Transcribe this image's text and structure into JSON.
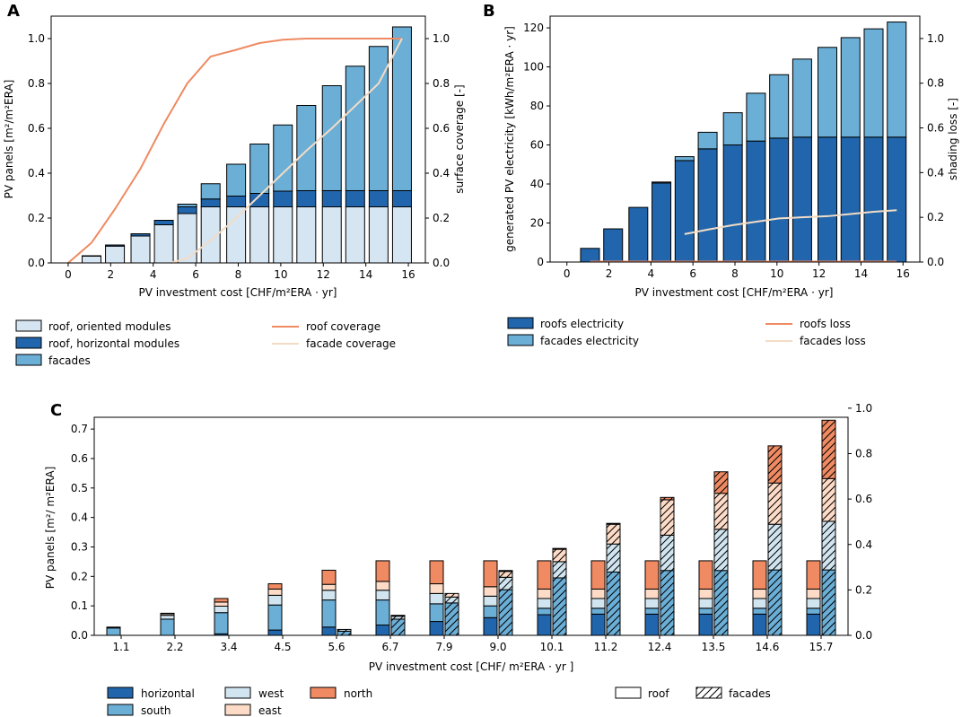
{
  "panels": {
    "a": {
      "label": "A"
    },
    "b": {
      "label": "B"
    },
    "c": {
      "label": "C"
    }
  },
  "colors": {
    "roof_oriented": "#d6e5f2",
    "roof_horizontal": "#2166ac",
    "facades": "#6baed6",
    "roof_coverage": "#ef8a62",
    "facade_coverage": "#f2dcc6",
    "west": "#d1e5f0",
    "east": "#fddbc7",
    "north": "#ef8a62"
  },
  "chart_data": [
    {
      "id": "A",
      "type": "bar",
      "stacked": true,
      "x": [
        1.1,
        2.2,
        3.4,
        4.5,
        5.6,
        6.7,
        7.9,
        9.0,
        10.1,
        11.2,
        12.4,
        13.5,
        14.6,
        15.7
      ],
      "series": [
        {
          "name": "roof, oriented modules",
          "values": [
            0.03,
            0.075,
            0.12,
            0.17,
            0.22,
            0.25,
            0.25,
            0.25,
            0.25,
            0.25,
            0.25,
            0.25,
            0.25,
            0.25
          ]
        },
        {
          "name": "roof, horizontal modules",
          "values": [
            0.002,
            0.005,
            0.01,
            0.02,
            0.03,
            0.035,
            0.048,
            0.06,
            0.07,
            0.072,
            0.072,
            0.072,
            0.072,
            0.072
          ]
        },
        {
          "name": "facades",
          "values": [
            0,
            0,
            0,
            0,
            0.012,
            0.068,
            0.142,
            0.22,
            0.295,
            0.38,
            0.468,
            0.555,
            0.643,
            0.73
          ]
        }
      ],
      "lines_right_axis": [
        {
          "name": "roof coverage",
          "x": [
            0,
            1.1,
            2.2,
            3.4,
            4.5,
            5.6,
            6.7,
            7.9,
            9.0,
            10.1,
            11.2,
            12.4,
            13.5,
            14.6,
            15.7
          ],
          "values": [
            0.0,
            0.09,
            0.24,
            0.42,
            0.62,
            0.8,
            0.92,
            0.95,
            0.98,
            0.995,
            1.0,
            1.0,
            1.0,
            1.0,
            1.0
          ]
        },
        {
          "name": "facade coverage",
          "x": [
            4.8,
            5.6,
            6.7,
            7.9,
            9.0,
            10.1,
            11.2,
            12.4,
            13.5,
            14.6,
            15.7
          ],
          "values": [
            0.0,
            0.02,
            0.1,
            0.2,
            0.3,
            0.4,
            0.5,
            0.6,
            0.7,
            0.8,
            1.0
          ]
        }
      ],
      "xlabel": "PV investment cost [CHF/m²ERA · yr]",
      "ylabel": "PV panels [m²/m²ERA]",
      "ylabel_right": "surface coverage [-]",
      "xlim": [
        -0.8,
        16.8
      ],
      "ylim": [
        0,
        1.1
      ],
      "ylim_right": [
        0,
        1.1
      ],
      "xticks": [
        "0",
        "2",
        "4",
        "6",
        "8",
        "10",
        "12",
        "14",
        "16"
      ],
      "yticks": [
        "0.0",
        "0.2",
        "0.4",
        "0.6",
        "0.8",
        "1.0"
      ],
      "yticks_right": [
        "0.0",
        "0.2",
        "0.4",
        "0.6",
        "0.8",
        "1.0"
      ],
      "legend": [
        "roof, oriented modules",
        "roof, horizontal modules",
        "facades",
        "roof coverage",
        "facade coverage"
      ],
      "legend_position": "below"
    },
    {
      "id": "B",
      "type": "bar",
      "stacked": true,
      "x": [
        1.1,
        2.2,
        3.4,
        4.5,
        5.6,
        6.7,
        7.9,
        9.0,
        10.1,
        11.2,
        12.4,
        13.5,
        14.6,
        15.7
      ],
      "series": [
        {
          "name": "roofs electricity",
          "values": [
            7,
            17,
            28,
            40.5,
            52,
            58,
            60,
            62,
            63.5,
            64,
            64,
            64,
            64,
            64
          ]
        },
        {
          "name": "facades electricity",
          "values": [
            0,
            0,
            0,
            0.5,
            2,
            8.5,
            16.5,
            24.5,
            32.5,
            40,
            46,
            51,
            55.5,
            59
          ]
        }
      ],
      "lines_right_axis": [
        {
          "name": "roofs loss",
          "x": [
            1.1,
            15.7
          ],
          "values": [
            0.002,
            0.002
          ]
        },
        {
          "name": "facades loss",
          "x": [
            5.6,
            6.7,
            7.9,
            9.0,
            10.1,
            11.2,
            12.4,
            13.5,
            14.6,
            15.7
          ],
          "values": [
            0.125,
            0.145,
            0.165,
            0.18,
            0.195,
            0.2,
            0.205,
            0.215,
            0.225,
            0.232
          ]
        }
      ],
      "xlabel": "PV investment cost [CHF/m²ERA · yr]",
      "ylabel": "generated PV electricity  [kWh/m²ERA · yr]",
      "ylabel_right": "shading loss [-]",
      "xlim": [
        -0.8,
        16.8
      ],
      "ylim": [
        0,
        126
      ],
      "ylim_right": [
        0,
        1.1
      ],
      "xticks": [
        "0",
        "2",
        "4",
        "6",
        "8",
        "10",
        "12",
        "14",
        "16"
      ],
      "yticks": [
        "0",
        "20",
        "40",
        "60",
        "80",
        "100",
        "120"
      ],
      "yticks_right": [
        "0.0",
        "0.2",
        "0.4",
        "0.6",
        "0.8",
        "1.0"
      ],
      "legend": [
        "roofs electricity",
        "facades electricity",
        "roofs loss",
        "facades loss"
      ],
      "legend_position": "below"
    },
    {
      "id": "C",
      "type": "bar",
      "stacked": true,
      "grouped": [
        "roof",
        "facades"
      ],
      "categories": [
        "1.1",
        "2.2",
        "3.4",
        "4.5",
        "5.6",
        "6.7",
        "7.9",
        "9.0",
        "10.1",
        "11.2",
        "12.4",
        "13.5",
        "14.6",
        "15.7"
      ],
      "roof": [
        {
          "name": "horizontal",
          "values": [
            0.0,
            0.0,
            0.005,
            0.018,
            0.028,
            0.035,
            0.047,
            0.06,
            0.07,
            0.072,
            0.072,
            0.072,
            0.072,
            0.072
          ]
        },
        {
          "name": "south",
          "values": [
            0.025,
            0.055,
            0.072,
            0.085,
            0.092,
            0.085,
            0.06,
            0.04,
            0.022,
            0.02,
            0.02,
            0.02,
            0.02,
            0.02
          ]
        },
        {
          "name": "west",
          "values": [
            0.003,
            0.013,
            0.022,
            0.033,
            0.033,
            0.033,
            0.035,
            0.033,
            0.033,
            0.033,
            0.033,
            0.033,
            0.033,
            0.033
          ]
        },
        {
          "name": "east",
          "values": [
            0.0,
            0.005,
            0.014,
            0.021,
            0.02,
            0.03,
            0.033,
            0.032,
            0.032,
            0.032,
            0.032,
            0.032,
            0.032,
            0.032
          ]
        },
        {
          "name": "north",
          "values": [
            0.0,
            0.002,
            0.012,
            0.018,
            0.048,
            0.07,
            0.078,
            0.088,
            0.096,
            0.096,
            0.096,
            0.096,
            0.096,
            0.096
          ]
        }
      ],
      "facades": [
        {
          "name": "south",
          "values": [
            0,
            0,
            0,
            0,
            0.014,
            0.055,
            0.11,
            0.155,
            0.195,
            0.215,
            0.22,
            0.22,
            0.222,
            0.222
          ]
        },
        {
          "name": "west",
          "values": [
            0,
            0,
            0,
            0,
            0.006,
            0.01,
            0.02,
            0.042,
            0.055,
            0.095,
            0.12,
            0.14,
            0.155,
            0.165
          ]
        },
        {
          "name": "east",
          "values": [
            0,
            0,
            0,
            0,
            0,
            0.003,
            0.012,
            0.02,
            0.042,
            0.067,
            0.12,
            0.122,
            0.14,
            0.145
          ]
        },
        {
          "name": "north",
          "values": [
            0,
            0,
            0,
            0,
            0,
            0,
            0,
            0.003,
            0.003,
            0.003,
            0.008,
            0.073,
            0.126,
            0.198
          ]
        }
      ],
      "xlabel": "PV investment cost [CHF/ m²ERA · yr ]",
      "ylabel": "PV panels [m²/ m²ERA]",
      "ylim": [
        0,
        0.74
      ],
      "ylim_right": [
        0,
        0.96
      ],
      "yticks": [
        "0.0",
        "0.1",
        "0.2",
        "0.3",
        "0.4",
        "0.5",
        "0.6",
        "0.7"
      ],
      "yticks_right": [
        "0.0",
        "0.2",
        "0.4",
        "0.6",
        "0.8",
        "1.0"
      ],
      "legend": [
        "horizontal",
        "south",
        "west",
        "east",
        "north",
        "roof",
        "facades"
      ],
      "legend_position": "below"
    }
  ]
}
